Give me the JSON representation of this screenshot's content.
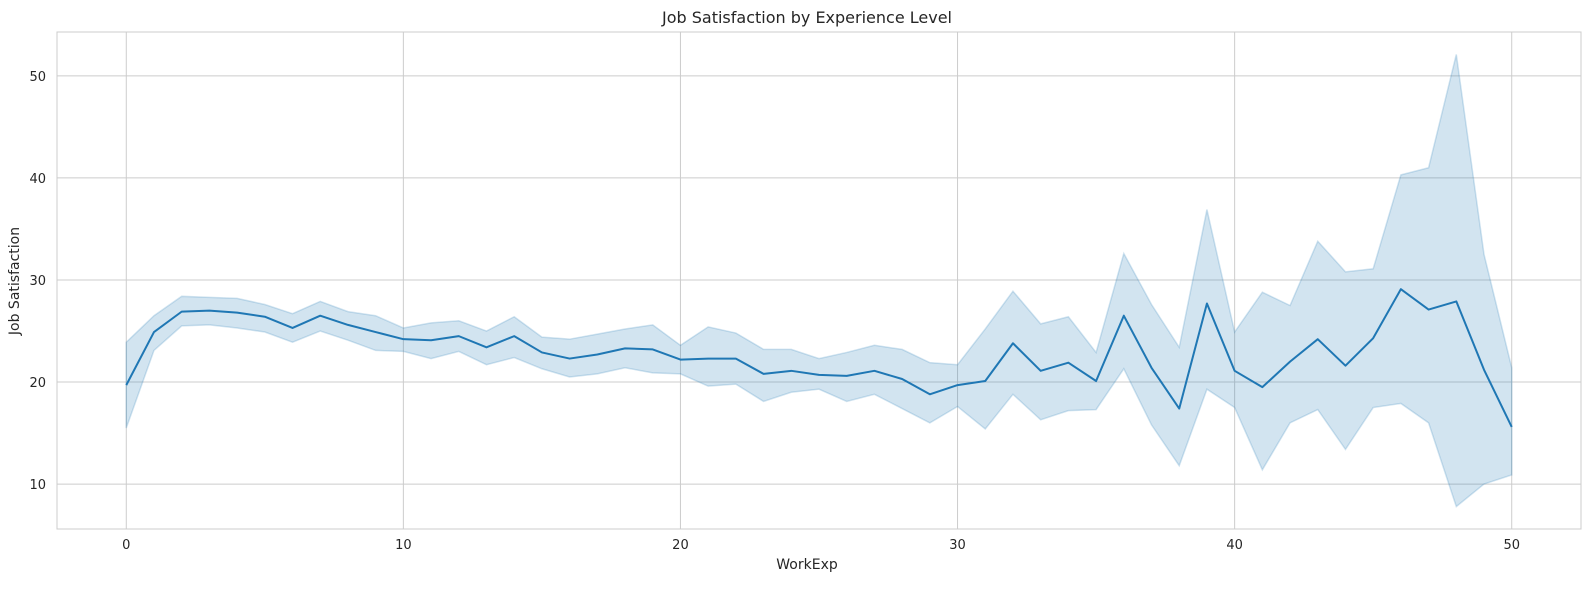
{
  "chart_data": {
    "type": "line",
    "title": "Job Satisfaction by Experience Level",
    "xlabel": "WorkExp",
    "ylabel": "Job Satisfaction",
    "xlim": [
      -2.5,
      52.5
    ],
    "ylim": [
      5.6,
      54.3
    ],
    "xticks": [
      0,
      10,
      20,
      30,
      40,
      50
    ],
    "yticks": [
      10,
      20,
      30,
      40,
      50
    ],
    "grid": true,
    "line_color": "#1f77b4",
    "band_color": "#1f77b4",
    "series": [
      {
        "x": [
          0,
          1,
          2,
          3,
          4,
          5,
          6,
          7,
          8,
          9,
          10,
          11,
          12,
          13,
          14,
          15,
          16,
          17,
          18,
          19,
          20,
          21,
          22,
          23,
          24,
          25,
          26,
          27,
          28,
          29,
          30,
          31,
          32,
          33,
          34,
          35,
          36,
          37,
          38,
          39,
          40,
          41,
          42,
          43,
          44,
          45,
          46,
          47,
          48,
          49,
          50
        ],
        "mean": [
          19.7,
          24.9,
          26.9,
          27.0,
          26.8,
          26.4,
          25.3,
          26.5,
          25.6,
          24.9,
          24.2,
          24.1,
          24.5,
          23.4,
          24.5,
          22.9,
          22.3,
          22.7,
          23.3,
          23.2,
          22.2,
          22.3,
          22.3,
          20.8,
          21.1,
          20.7,
          20.6,
          21.1,
          20.3,
          18.8,
          19.7,
          20.1,
          23.8,
          21.1,
          21.9,
          20.1,
          26.5,
          21.4,
          17.4,
          27.7,
          21.1,
          19.5,
          22.0,
          24.2,
          21.6,
          24.3,
          29.1,
          27.1,
          27.9,
          21.2,
          15.6
        ],
        "lower": [
          15.5,
          23.1,
          25.5,
          25.6,
          25.3,
          24.9,
          23.9,
          25.0,
          24.1,
          23.1,
          23.0,
          22.3,
          23.0,
          21.7,
          22.4,
          21.3,
          20.5,
          20.8,
          21.4,
          20.9,
          20.8,
          19.6,
          19.8,
          18.1,
          19.0,
          19.3,
          18.1,
          18.8,
          17.4,
          16.0,
          17.6,
          15.4,
          18.8,
          16.3,
          17.2,
          17.3,
          21.3,
          15.8,
          11.8,
          19.3,
          17.5,
          11.4,
          16.0,
          17.3,
          13.4,
          17.5,
          17.9,
          16.0,
          7.8,
          10.0,
          10.9
        ],
        "upper": [
          23.9,
          26.5,
          28.4,
          28.3,
          28.2,
          27.6,
          26.7,
          27.9,
          26.9,
          26.5,
          25.3,
          25.8,
          26.0,
          25.0,
          26.4,
          24.4,
          24.2,
          24.7,
          25.2,
          25.6,
          23.6,
          25.4,
          24.8,
          23.2,
          23.2,
          22.3,
          22.9,
          23.6,
          23.2,
          21.9,
          21.7,
          25.2,
          28.9,
          25.7,
          26.4,
          22.9,
          32.6,
          27.6,
          23.4,
          36.9,
          24.9,
          28.8,
          27.5,
          33.8,
          30.8,
          31.1,
          40.3,
          41.0,
          52.1,
          32.5,
          21.4
        ]
      }
    ]
  }
}
